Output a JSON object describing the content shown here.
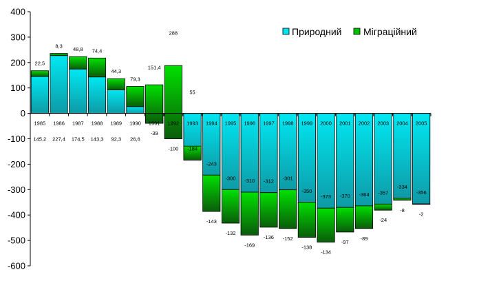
{
  "chart_data": {
    "type": "bar",
    "stacked": true,
    "categories": [
      "1985",
      "1986",
      "1987",
      "1988",
      "1989",
      "1990",
      "1991",
      "1992",
      "1993",
      "1994",
      "1995",
      "1996",
      "1997",
      "1998",
      "1999",
      "2000",
      "2001",
      "2002",
      "2003",
      "2004",
      "2005"
    ],
    "series": [
      {
        "name": "Природний",
        "color": "#00e5f0",
        "values": [
          145.2,
          227.4,
          174.5,
          143.3,
          92.3,
          26.6,
          -39,
          -100,
          -184,
          -243,
          -300,
          -310,
          -312,
          -301,
          -350,
          -373,
          -370,
          -364,
          -357,
          -334,
          -356
        ],
        "labels": [
          "145,2",
          "227,4",
          "174,5",
          "143,3",
          "92,3",
          "26,6",
          "-39",
          "-100",
          "-184",
          "-243",
          "-300",
          "-310",
          "-312",
          "-301",
          "-350",
          "-373",
          "-370",
          "-364",
          "-357",
          "-334",
          "-356"
        ]
      },
      {
        "name": "Міграційний",
        "color": "#00c000",
        "values": [
          22.5,
          8.3,
          48.8,
          74.4,
          44.3,
          79.3,
          151.4,
          288,
          55,
          -143,
          -132,
          -169,
          -136,
          -152,
          -138,
          -134,
          -97,
          -89,
          -24,
          -8,
          -2
        ],
        "labels": [
          "22,5",
          "8,3",
          "48,8",
          "74,4",
          "44,3",
          "79,3",
          "151,4",
          "288",
          "55",
          "-143",
          "-132",
          "-169",
          "-136",
          "-152",
          "-138",
          "-134",
          "-97",
          "-89",
          "-24",
          "-8",
          "-2"
        ]
      }
    ],
    "ylim": [
      -600,
      400
    ],
    "yticks": [
      "400",
      "300",
      "200",
      "100",
      "0",
      "-100",
      "-200",
      "-300",
      "-400",
      "-500",
      "-600"
    ],
    "grid": false,
    "legend_position": "top-right"
  }
}
